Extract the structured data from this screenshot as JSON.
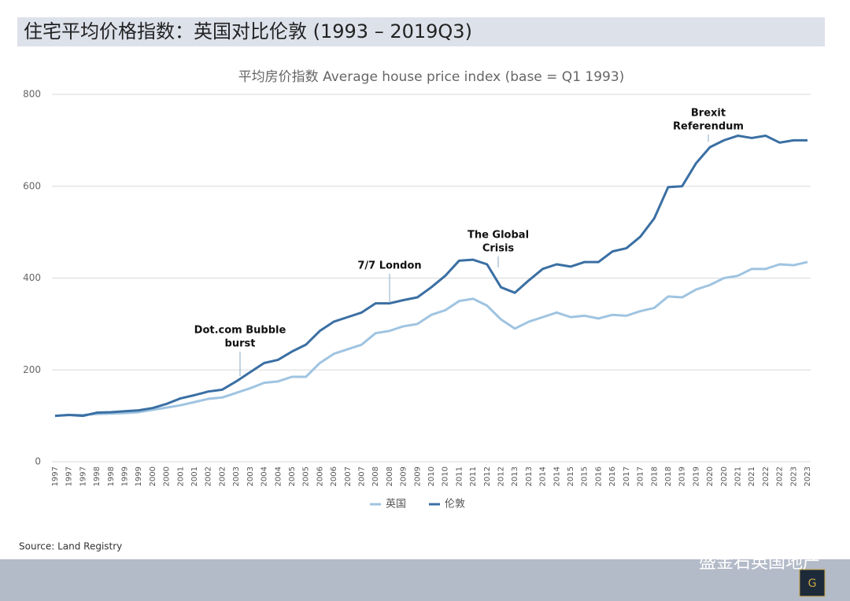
{
  "header": {
    "title": "住宅平均价格指数：英国对比伦敦 (1993 – 2019Q3)"
  },
  "footer": {
    "source": "Source: Land Registry",
    "watermark": "盛金石英国地产"
  },
  "chart_data": {
    "type": "line",
    "title": "平均房价指数 Average house price index (base = Q1 1993)",
    "categories": [
      "1997",
      "1997",
      "1997",
      "1998",
      "1998",
      "1999",
      "1999",
      "2000",
      "2000",
      "2001",
      "2001",
      "2002",
      "2002",
      "2003",
      "2003",
      "2004",
      "2004",
      "2005",
      "2005",
      "2006",
      "2006",
      "2007",
      "2007",
      "2008",
      "2008",
      "2009",
      "2009",
      "2010",
      "2010",
      "2011",
      "2011",
      "2012",
      "2012",
      "2013",
      "2013",
      "2014",
      "2014",
      "2015",
      "2015",
      "2016",
      "2016",
      "2017",
      "2017",
      "2018",
      "2018",
      "2019",
      "2019",
      "2020",
      "2020",
      "2021",
      "2021",
      "2022",
      "2022",
      "2023",
      "2023"
    ],
    "series": [
      {
        "name": "英国",
        "color": "#9fc4e1",
        "values": [
          100,
          102,
          102,
          104,
          105,
          106,
          108,
          113,
          118,
          123,
          130,
          137,
          140,
          150,
          160,
          172,
          175,
          185,
          185,
          215,
          235,
          245,
          255,
          280,
          285,
          295,
          300,
          320,
          330,
          350,
          355,
          340,
          310,
          290,
          305,
          315,
          325,
          315,
          318,
          312,
          320,
          318,
          328,
          335,
          360,
          358,
          375,
          385,
          400,
          405,
          420,
          420,
          430,
          428,
          435
        ]
      },
      {
        "name": "伦敦",
        "color": "#3a6fa3",
        "values": [
          100,
          102,
          100,
          107,
          108,
          110,
          112,
          117,
          126,
          138,
          145,
          153,
          157,
          175,
          195,
          215,
          222,
          240,
          255,
          285,
          305,
          315,
          325,
          345,
          345,
          352,
          358,
          380,
          405,
          438,
          440,
          430,
          380,
          368,
          395,
          420,
          430,
          425,
          435,
          435,
          458,
          465,
          490,
          530,
          598,
          600,
          650,
          685,
          700,
          710,
          705,
          710,
          695,
          700,
          700
        ]
      }
    ],
    "ylim": [
      0,
      800
    ],
    "yticks": [
      0,
      200,
      400,
      600,
      800
    ],
    "grid": true,
    "legend": "bottom",
    "annotations": [
      {
        "lines": [
          "Dot.com Bubble",
          "burst"
        ]
      },
      {
        "lines": [
          "7/7 London"
        ]
      },
      {
        "lines": [
          "The Global",
          "Crisis"
        ]
      },
      {
        "lines": [
          "Brexit",
          "Referendum"
        ]
      }
    ]
  }
}
